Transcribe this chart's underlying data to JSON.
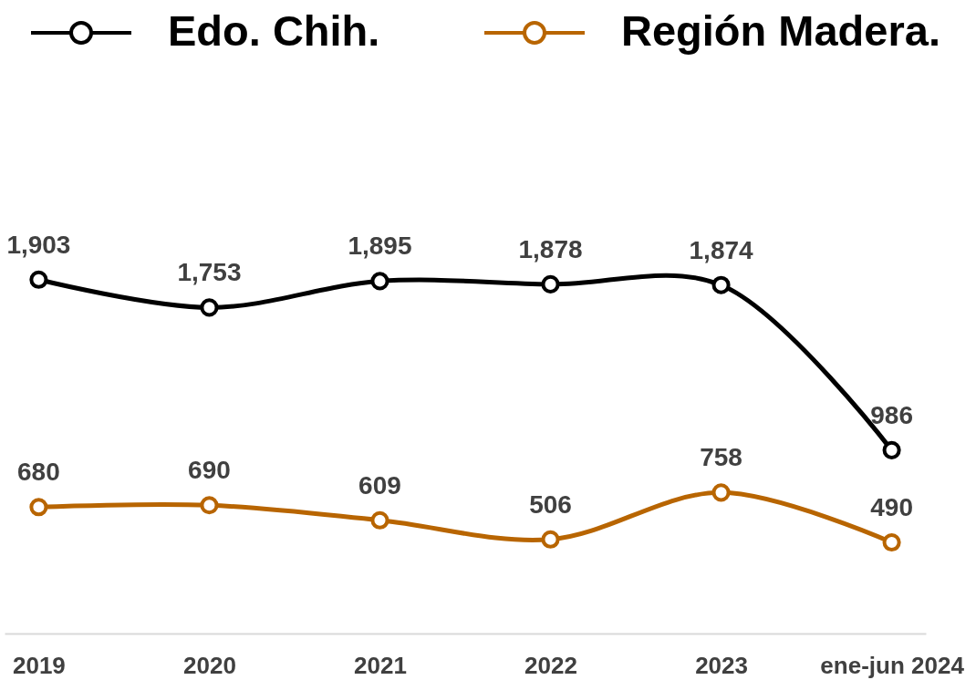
{
  "chart_data": {
    "type": "line",
    "categories": [
      "2019",
      "2020",
      "2021",
      "2022",
      "2023",
      "ene-jun 2024"
    ],
    "series": [
      {
        "name": "Edo. Chih.",
        "color": "#000000",
        "values": [
          1903,
          1753,
          1895,
          1878,
          1874,
          986
        ],
        "value_labels": [
          "1,903",
          "1,753",
          "1,895",
          "1,878",
          "1,874",
          "986"
        ]
      },
      {
        "name": "Región Madera.",
        "color": "#b86500",
        "values": [
          680,
          690,
          609,
          506,
          758,
          490
        ],
        "value_labels": [
          "680",
          "690",
          "609",
          "506",
          "758",
          "490"
        ]
      }
    ],
    "tick_labels": "x",
    "legend": "top",
    "marker": "circle",
    "line_style": "solid"
  }
}
